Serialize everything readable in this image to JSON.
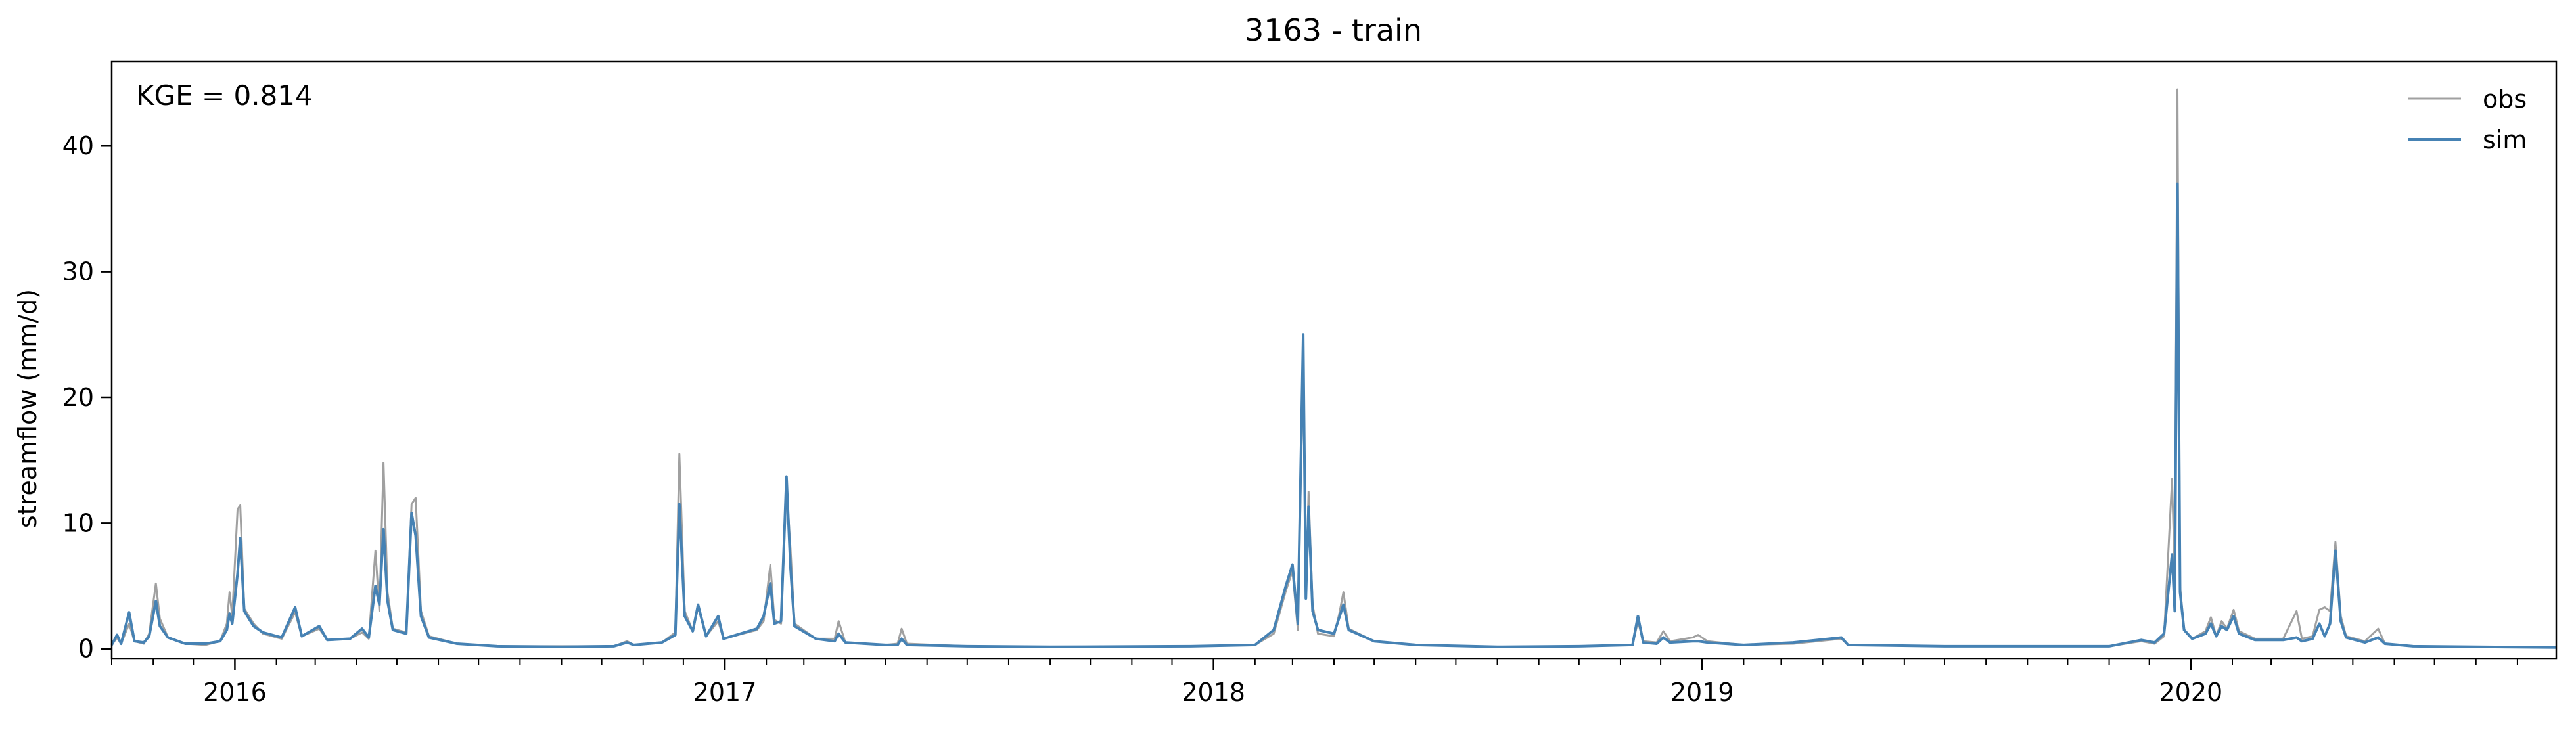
{
  "chart_data": {
    "type": "line",
    "title": "3163 - train",
    "ylabel": "streamflow (mm/d)",
    "xlabel": "",
    "annotation": "KGE = 0.814",
    "legend_position": "upper-right",
    "grid": false,
    "xlim": [
      "2015-10-01",
      "2020-09-30"
    ],
    "ylim": [
      -0.8,
      46.7
    ],
    "xticks": [
      {
        "date": "2016-01-01",
        "label": "2016"
      },
      {
        "date": "2017-01-01",
        "label": "2017"
      },
      {
        "date": "2018-01-01",
        "label": "2018"
      },
      {
        "date": "2019-01-01",
        "label": "2019"
      },
      {
        "date": "2020-01-01",
        "label": "2020"
      }
    ],
    "yticks": [
      0,
      10,
      20,
      30,
      40
    ],
    "series": [
      {
        "name": "obs",
        "color": "#a0a0a0",
        "points": [
          [
            "2015-10-01",
            0.3
          ],
          [
            "2015-10-05",
            0.9
          ],
          [
            "2015-10-08",
            0.4
          ],
          [
            "2015-10-14",
            2.0
          ],
          [
            "2015-10-18",
            0.6
          ],
          [
            "2015-10-25",
            0.4
          ],
          [
            "2015-10-29",
            1.2
          ],
          [
            "2015-11-03",
            5.2
          ],
          [
            "2015-11-06",
            2.4
          ],
          [
            "2015-11-12",
            0.9
          ],
          [
            "2015-11-25",
            0.4
          ],
          [
            "2015-12-10",
            0.3
          ],
          [
            "2015-12-21",
            0.6
          ],
          [
            "2015-12-26",
            2.0
          ],
          [
            "2015-12-28",
            4.5
          ],
          [
            "2015-12-30",
            2.6
          ],
          [
            "2016-01-03",
            11.1
          ],
          [
            "2016-01-05",
            11.4
          ],
          [
            "2016-01-08",
            3.2
          ],
          [
            "2016-01-15",
            2.0
          ],
          [
            "2016-01-22",
            1.2
          ],
          [
            "2016-02-05",
            0.8
          ],
          [
            "2016-02-15",
            2.9
          ],
          [
            "2016-02-20",
            1.0
          ],
          [
            "2016-03-04",
            1.6
          ],
          [
            "2016-03-10",
            0.7
          ],
          [
            "2016-03-27",
            0.8
          ],
          [
            "2016-04-05",
            1.3
          ],
          [
            "2016-04-10",
            0.8
          ],
          [
            "2016-04-15",
            7.8
          ],
          [
            "2016-04-18",
            3.0
          ],
          [
            "2016-04-21",
            14.8
          ],
          [
            "2016-04-24",
            4.5
          ],
          [
            "2016-04-28",
            1.6
          ],
          [
            "2016-05-08",
            1.3
          ],
          [
            "2016-05-12",
            11.5
          ],
          [
            "2016-05-15",
            12.0
          ],
          [
            "2016-05-19",
            3.0
          ],
          [
            "2016-05-25",
            1.0
          ],
          [
            "2016-06-15",
            0.4
          ],
          [
            "2016-07-15",
            0.2
          ],
          [
            "2016-09-01",
            0.2
          ],
          [
            "2016-10-10",
            0.2
          ],
          [
            "2016-10-20",
            0.6
          ],
          [
            "2016-10-25",
            0.3
          ],
          [
            "2016-11-15",
            0.5
          ],
          [
            "2016-11-25",
            1.3
          ],
          [
            "2016-11-28",
            15.5
          ],
          [
            "2016-12-02",
            3.0
          ],
          [
            "2016-12-08",
            1.4
          ],
          [
            "2016-12-12",
            3.3
          ],
          [
            "2016-12-18",
            1.0
          ],
          [
            "2016-12-27",
            2.2
          ],
          [
            "2016-12-31",
            0.8
          ],
          [
            "2017-01-25",
            1.5
          ],
          [
            "2017-01-30",
            2.2
          ],
          [
            "2017-02-04",
            6.7
          ],
          [
            "2017-02-07",
            2.3
          ],
          [
            "2017-02-12",
            2.0
          ],
          [
            "2017-02-16",
            13.0
          ],
          [
            "2017-02-19",
            8.0
          ],
          [
            "2017-02-22",
            2.0
          ],
          [
            "2017-03-10",
            0.8
          ],
          [
            "2017-03-24",
            0.8
          ],
          [
            "2017-03-27",
            2.2
          ],
          [
            "2017-04-01",
            0.5
          ],
          [
            "2017-05-01",
            0.3
          ],
          [
            "2017-05-10",
            0.4
          ],
          [
            "2017-05-13",
            1.6
          ],
          [
            "2017-05-17",
            0.4
          ],
          [
            "2017-07-01",
            0.2
          ],
          [
            "2017-09-01",
            0.15
          ],
          [
            "2017-12-15",
            0.2
          ],
          [
            "2018-02-01",
            0.3
          ],
          [
            "2018-02-15",
            1.2
          ],
          [
            "2018-02-24",
            4.6
          ],
          [
            "2018-03-01",
            6.2
          ],
          [
            "2018-03-05",
            1.5
          ],
          [
            "2018-03-09",
            23.0
          ],
          [
            "2018-03-11",
            4.0
          ],
          [
            "2018-03-13",
            12.5
          ],
          [
            "2018-03-16",
            3.5
          ],
          [
            "2018-03-20",
            1.2
          ],
          [
            "2018-04-01",
            1.0
          ],
          [
            "2018-04-05",
            2.8
          ],
          [
            "2018-04-08",
            4.5
          ],
          [
            "2018-04-12",
            1.6
          ],
          [
            "2018-05-01",
            0.6
          ],
          [
            "2018-06-01",
            0.3
          ],
          [
            "2018-08-01",
            0.15
          ],
          [
            "2018-10-01",
            0.2
          ],
          [
            "2018-11-10",
            0.3
          ],
          [
            "2018-11-14",
            2.2
          ],
          [
            "2018-11-18",
            0.6
          ],
          [
            "2018-11-28",
            0.5
          ],
          [
            "2018-12-03",
            1.4
          ],
          [
            "2018-12-08",
            0.6
          ],
          [
            "2018-12-25",
            0.9
          ],
          [
            "2018-12-29",
            1.1
          ],
          [
            "2019-01-05",
            0.6
          ],
          [
            "2019-02-01",
            0.3
          ],
          [
            "2019-03-10",
            0.4
          ],
          [
            "2019-04-15",
            0.8
          ],
          [
            "2019-04-20",
            0.3
          ],
          [
            "2019-07-01",
            0.2
          ],
          [
            "2019-11-01",
            0.2
          ],
          [
            "2019-11-25",
            0.6
          ],
          [
            "2019-12-05",
            0.4
          ],
          [
            "2019-12-12",
            1.0
          ],
          [
            "2019-12-18",
            13.5
          ],
          [
            "2019-12-20",
            6.0
          ],
          [
            "2019-12-22",
            44.5
          ],
          [
            "2019-12-24",
            5.0
          ],
          [
            "2019-12-27",
            1.5
          ],
          [
            "2020-01-02",
            0.8
          ],
          [
            "2020-01-12",
            1.4
          ],
          [
            "2020-01-16",
            2.5
          ],
          [
            "2020-01-20",
            1.0
          ],
          [
            "2020-01-24",
            2.2
          ],
          [
            "2020-01-28",
            1.6
          ],
          [
            "2020-02-02",
            3.1
          ],
          [
            "2020-02-06",
            1.4
          ],
          [
            "2020-02-18",
            0.8
          ],
          [
            "2020-03-10",
            0.8
          ],
          [
            "2020-03-20",
            3.0
          ],
          [
            "2020-03-24",
            0.8
          ],
          [
            "2020-04-01",
            1.0
          ],
          [
            "2020-04-06",
            3.1
          ],
          [
            "2020-04-10",
            3.3
          ],
          [
            "2020-04-14",
            3.0
          ],
          [
            "2020-04-18",
            8.5
          ],
          [
            "2020-04-22",
            2.6
          ],
          [
            "2020-04-26",
            1.0
          ],
          [
            "2020-05-10",
            0.6
          ],
          [
            "2020-05-20",
            1.6
          ],
          [
            "2020-05-25",
            0.4
          ],
          [
            "2020-06-15",
            0.2
          ],
          [
            "2020-09-30",
            0.1
          ]
        ]
      },
      {
        "name": "sim",
        "color": "#4682b4",
        "points": [
          [
            "2015-10-01",
            0.3
          ],
          [
            "2015-10-05",
            1.1
          ],
          [
            "2015-10-08",
            0.4
          ],
          [
            "2015-10-14",
            2.9
          ],
          [
            "2015-10-18",
            0.6
          ],
          [
            "2015-10-25",
            0.5
          ],
          [
            "2015-10-29",
            1.0
          ],
          [
            "2015-11-03",
            3.8
          ],
          [
            "2015-11-06",
            1.8
          ],
          [
            "2015-11-12",
            0.9
          ],
          [
            "2015-11-25",
            0.4
          ],
          [
            "2015-12-10",
            0.4
          ],
          [
            "2015-12-21",
            0.6
          ],
          [
            "2015-12-26",
            1.5
          ],
          [
            "2015-12-28",
            2.8
          ],
          [
            "2015-12-30",
            2.0
          ],
          [
            "2016-01-03",
            6.0
          ],
          [
            "2016-01-05",
            8.8
          ],
          [
            "2016-01-08",
            3.0
          ],
          [
            "2016-01-15",
            1.8
          ],
          [
            "2016-01-22",
            1.3
          ],
          [
            "2016-02-05",
            0.9
          ],
          [
            "2016-02-15",
            3.3
          ],
          [
            "2016-02-20",
            1.0
          ],
          [
            "2016-03-04",
            1.8
          ],
          [
            "2016-03-10",
            0.7
          ],
          [
            "2016-03-27",
            0.8
          ],
          [
            "2016-04-05",
            1.6
          ],
          [
            "2016-04-10",
            0.9
          ],
          [
            "2016-04-15",
            5.0
          ],
          [
            "2016-04-18",
            3.5
          ],
          [
            "2016-04-21",
            9.5
          ],
          [
            "2016-04-24",
            3.8
          ],
          [
            "2016-04-28",
            1.5
          ],
          [
            "2016-05-08",
            1.2
          ],
          [
            "2016-05-12",
            10.8
          ],
          [
            "2016-05-15",
            9.0
          ],
          [
            "2016-05-19",
            2.6
          ],
          [
            "2016-05-25",
            0.9
          ],
          [
            "2016-06-15",
            0.4
          ],
          [
            "2016-07-15",
            0.2
          ],
          [
            "2016-09-01",
            0.15
          ],
          [
            "2016-10-10",
            0.2
          ],
          [
            "2016-10-20",
            0.5
          ],
          [
            "2016-10-25",
            0.3
          ],
          [
            "2016-11-15",
            0.5
          ],
          [
            "2016-11-25",
            1.1
          ],
          [
            "2016-11-28",
            11.5
          ],
          [
            "2016-12-02",
            2.6
          ],
          [
            "2016-12-08",
            1.4
          ],
          [
            "2016-12-12",
            3.5
          ],
          [
            "2016-12-18",
            1.0
          ],
          [
            "2016-12-27",
            2.6
          ],
          [
            "2016-12-31",
            0.8
          ],
          [
            "2017-01-25",
            1.6
          ],
          [
            "2017-01-30",
            2.6
          ],
          [
            "2017-02-04",
            5.2
          ],
          [
            "2017-02-07",
            2.0
          ],
          [
            "2017-02-12",
            2.2
          ],
          [
            "2017-02-16",
            13.7
          ],
          [
            "2017-02-19",
            6.5
          ],
          [
            "2017-02-22",
            1.8
          ],
          [
            "2017-03-10",
            0.8
          ],
          [
            "2017-03-24",
            0.6
          ],
          [
            "2017-03-27",
            1.2
          ],
          [
            "2017-04-01",
            0.5
          ],
          [
            "2017-05-01",
            0.3
          ],
          [
            "2017-05-10",
            0.3
          ],
          [
            "2017-05-13",
            0.8
          ],
          [
            "2017-05-17",
            0.3
          ],
          [
            "2017-07-01",
            0.2
          ],
          [
            "2017-09-01",
            0.15
          ],
          [
            "2017-12-15",
            0.2
          ],
          [
            "2018-02-01",
            0.3
          ],
          [
            "2018-02-15",
            1.5
          ],
          [
            "2018-02-24",
            5.0
          ],
          [
            "2018-03-01",
            6.7
          ],
          [
            "2018-03-05",
            2.0
          ],
          [
            "2018-03-09",
            25.0
          ],
          [
            "2018-03-11",
            4.0
          ],
          [
            "2018-03-13",
            11.3
          ],
          [
            "2018-03-16",
            3.0
          ],
          [
            "2018-03-20",
            1.5
          ],
          [
            "2018-04-01",
            1.2
          ],
          [
            "2018-04-05",
            2.5
          ],
          [
            "2018-04-08",
            3.5
          ],
          [
            "2018-04-12",
            1.5
          ],
          [
            "2018-05-01",
            0.6
          ],
          [
            "2018-06-01",
            0.3
          ],
          [
            "2018-08-01",
            0.15
          ],
          [
            "2018-10-01",
            0.2
          ],
          [
            "2018-11-10",
            0.3
          ],
          [
            "2018-11-14",
            2.6
          ],
          [
            "2018-11-18",
            0.5
          ],
          [
            "2018-11-28",
            0.4
          ],
          [
            "2018-12-03",
            0.9
          ],
          [
            "2018-12-08",
            0.5
          ],
          [
            "2018-12-25",
            0.6
          ],
          [
            "2018-12-29",
            0.6
          ],
          [
            "2019-01-05",
            0.5
          ],
          [
            "2019-02-01",
            0.3
          ],
          [
            "2019-03-10",
            0.5
          ],
          [
            "2019-04-15",
            0.9
          ],
          [
            "2019-04-20",
            0.3
          ],
          [
            "2019-07-01",
            0.2
          ],
          [
            "2019-11-01",
            0.2
          ],
          [
            "2019-11-25",
            0.7
          ],
          [
            "2019-12-05",
            0.5
          ],
          [
            "2019-12-12",
            1.2
          ],
          [
            "2019-12-18",
            7.5
          ],
          [
            "2019-12-20",
            3.0
          ],
          [
            "2019-12-22",
            37.0
          ],
          [
            "2019-12-24",
            4.5
          ],
          [
            "2019-12-27",
            1.5
          ],
          [
            "2020-01-02",
            0.8
          ],
          [
            "2020-01-12",
            1.2
          ],
          [
            "2020-01-16",
            2.0
          ],
          [
            "2020-01-20",
            1.0
          ],
          [
            "2020-01-24",
            1.8
          ],
          [
            "2020-01-28",
            1.5
          ],
          [
            "2020-02-02",
            2.6
          ],
          [
            "2020-02-06",
            1.2
          ],
          [
            "2020-02-18",
            0.7
          ],
          [
            "2020-03-10",
            0.7
          ],
          [
            "2020-03-20",
            0.9
          ],
          [
            "2020-03-24",
            0.6
          ],
          [
            "2020-04-01",
            0.8
          ],
          [
            "2020-04-06",
            2.0
          ],
          [
            "2020-04-10",
            1.0
          ],
          [
            "2020-04-14",
            2.0
          ],
          [
            "2020-04-18",
            7.8
          ],
          [
            "2020-04-22",
            2.2
          ],
          [
            "2020-04-26",
            0.9
          ],
          [
            "2020-05-10",
            0.5
          ],
          [
            "2020-05-20",
            0.9
          ],
          [
            "2020-05-25",
            0.4
          ],
          [
            "2020-06-15",
            0.2
          ],
          [
            "2020-09-30",
            0.1
          ]
        ]
      }
    ]
  }
}
